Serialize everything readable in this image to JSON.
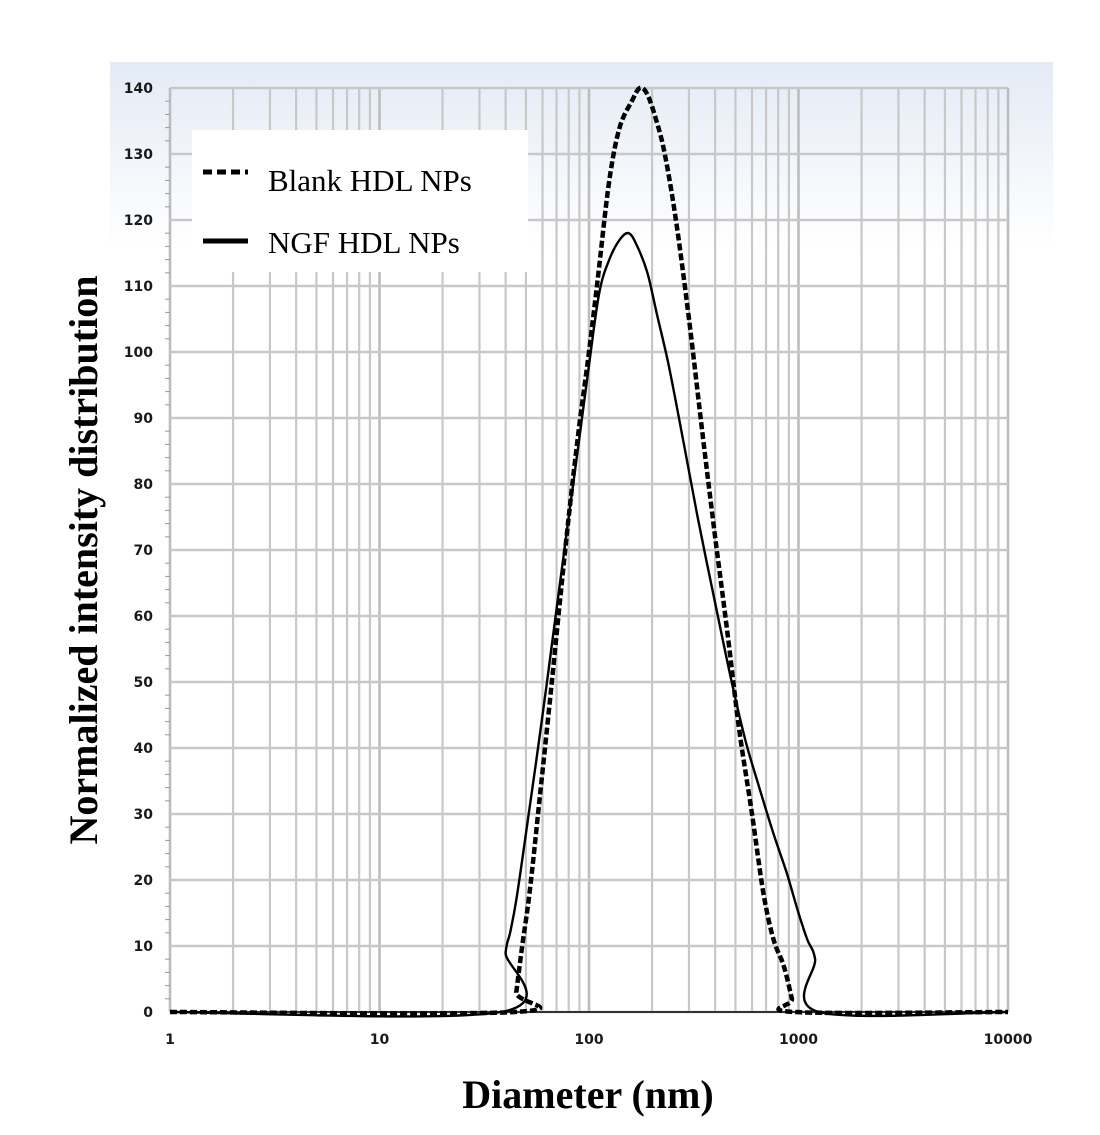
{
  "chart_data": {
    "type": "line",
    "xlabel": "Diameter (nm)",
    "ylabel": "Normalized intensity distribution",
    "x_scale": "log",
    "xlim": [
      1,
      10000
    ],
    "ylim": [
      0,
      140
    ],
    "x_ticks": [
      "1",
      "10",
      "100",
      "1000",
      "10000"
    ],
    "y_ticks": [
      "0",
      "10",
      "20",
      "30",
      "40",
      "50",
      "60",
      "70",
      "80",
      "90",
      "100",
      "110",
      "120",
      "130",
      "140"
    ],
    "grid": true,
    "legend_position": "top-left",
    "series": [
      {
        "name": "Blank HDL NPs",
        "style": "dashed",
        "color": "#000000",
        "x": [
          1,
          44,
          45,
          48,
          52,
          58,
          65,
          72,
          80,
          90,
          100,
          110,
          125,
          140,
          160,
          175,
          190,
          210,
          230,
          260,
          300,
          350,
          400,
          460,
          520,
          600,
          680,
          760,
          850,
          930,
          960,
          10000
        ],
        "y": [
          0,
          0,
          3,
          10,
          18,
          32,
          47,
          61,
          75,
          89,
          100,
          111,
          126,
          134,
          138,
          140,
          139,
          135,
          130,
          120,
          105,
          87,
          72,
          57,
          43,
          30,
          18,
          11,
          7,
          2,
          0,
          0
        ]
      },
      {
        "name": "NGF HDL NPs",
        "style": "solid",
        "color": "#000000",
        "x": [
          1,
          38,
          40,
          42,
          45,
          50,
          56,
          63,
          70,
          80,
          90,
          100,
          112,
          125,
          140,
          155,
          170,
          190,
          210,
          240,
          280,
          330,
          400,
          480,
          560,
          650,
          760,
          880,
          1000,
          1100,
          1200,
          1250,
          10000
        ],
        "y": [
          0,
          0,
          9,
          12,
          17,
          27,
          38,
          50,
          61,
          75,
          87,
          98,
          109,
          114,
          117,
          118,
          116,
          112,
          106,
          98,
          87,
          75,
          62,
          50,
          41,
          34,
          27,
          21,
          15,
          11,
          8,
          0,
          0
        ]
      }
    ]
  }
}
